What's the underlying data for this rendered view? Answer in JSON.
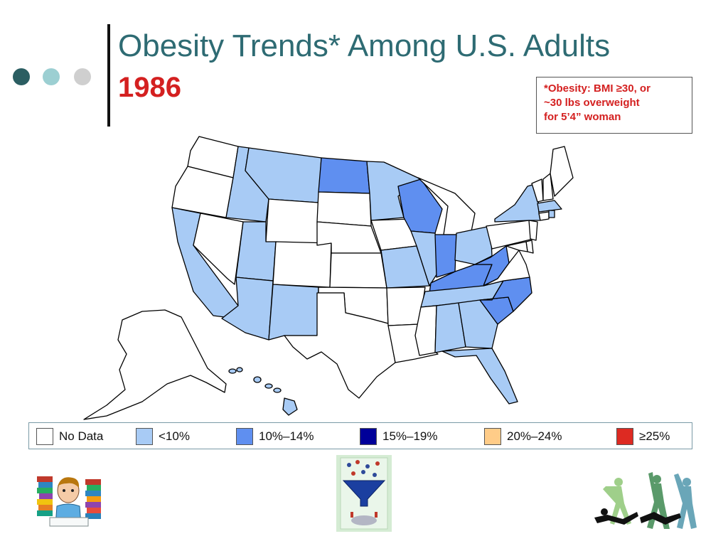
{
  "header": {
    "title": "Obesity Trends* Among U.S. Adults",
    "year": "1986",
    "title_color": "#2e6b73",
    "year_color": "#d42020"
  },
  "decor": {
    "dot_colors": [
      "#2b5e62",
      "#9ccfd2",
      "#cfcfcf"
    ]
  },
  "note": {
    "lines": [
      "*Obesity: BMI ≥30, or",
      "~30 lbs overweight",
      "for 5’4” woman"
    ]
  },
  "legend": {
    "items": [
      {
        "label": "No Data",
        "color": "#ffffff"
      },
      {
        "label": "<10%",
        "color": "#a8cbf5"
      },
      {
        "label": "10%–14%",
        "color": "#5f8ff0"
      },
      {
        "label": "15%–19%",
        "color": "#000099"
      },
      {
        "label": "20%–24%",
        "color": "#ffcc88"
      },
      {
        "label": "≥25%",
        "color": "#dd2a22"
      }
    ]
  },
  "map": {
    "category_colors": {
      "no_data": "#ffffff",
      "lt10": "#a8cbf5",
      "10_14": "#5f8ff0"
    },
    "states": {
      "WA": "no_data",
      "OR": "no_data",
      "CA": "lt10",
      "NV": "no_data",
      "ID": "lt10",
      "MT": "lt10",
      "WY": "no_data",
      "UT": "lt10",
      "AZ": "lt10",
      "CO": "no_data",
      "NM": "lt10",
      "ND": "10_14",
      "SD": "no_data",
      "NE": "no_data",
      "KS": "no_data",
      "OK": "no_data",
      "TX": "no_data",
      "MN": "lt10",
      "IA": "no_data",
      "MO": "lt10",
      "AR": "no_data",
      "LA": "no_data",
      "WI": "10_14",
      "IL": "lt10",
      "MS": "no_data",
      "MI": "no_data",
      "IN": "10_14",
      "KY": "10_14",
      "TN": "lt10",
      "AL": "lt10",
      "OH": "lt10",
      "WV": "10_14",
      "VA": "no_data",
      "NC": "10_14",
      "SC": "10_14",
      "GA": "lt10",
      "FL": "lt10",
      "PA": "no_data",
      "NY": "lt10",
      "ME": "no_data",
      "NH": "no_data",
      "VT": "no_data",
      "MA": "lt10",
      "RI": "lt10",
      "CT": "no_data",
      "NJ": "no_data",
      "DE": "no_data",
      "MD": "no_data",
      "AK": "no_data",
      "HI": "lt10"
    }
  }
}
